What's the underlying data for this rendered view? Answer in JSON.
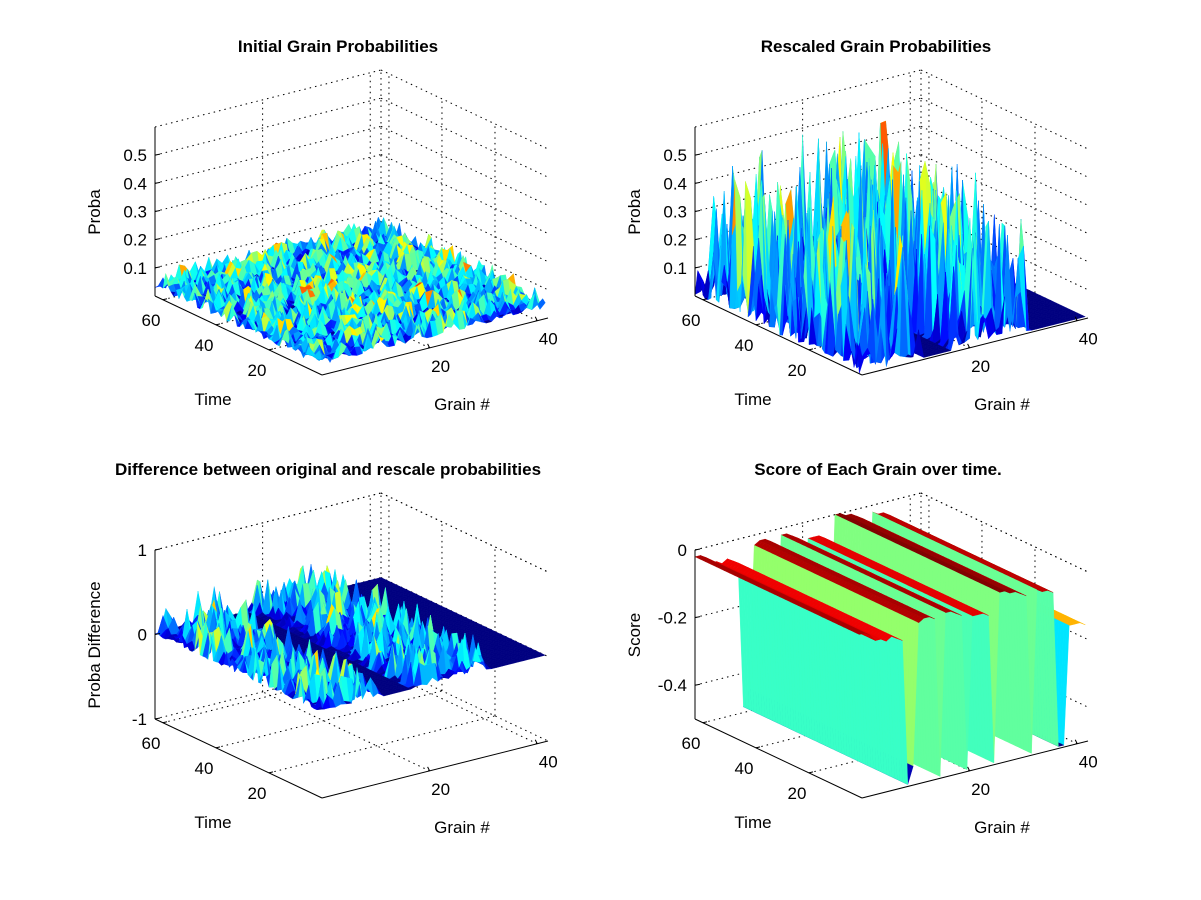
{
  "chart_data": [
    {
      "type": "surface3d",
      "title": "Initial Grain Probabilities",
      "xlabel": "Grain #",
      "ylabel": "Time",
      "zlabel": "Proba",
      "xlim": [
        0,
        42
      ],
      "ylim": [
        0,
        63
      ],
      "zlim": [
        0,
        0.6
      ],
      "xticks": [
        "20",
        "40"
      ],
      "yticks": [
        "20",
        "40",
        "60"
      ],
      "zticks": [
        "0.1",
        "0.2",
        "0.3",
        "0.4",
        "0.5"
      ],
      "grid": true,
      "surface": {
        "kind": "noise",
        "base": 0.03,
        "amplitude": 0.07,
        "active_grains": [
          [
            0,
            42
          ]
        ],
        "seed": 11
      }
    },
    {
      "type": "surface3d",
      "title": "Rescaled Grain Probabilities",
      "xlabel": "Grain #",
      "ylabel": "Time",
      "zlabel": "Proba",
      "xlim": [
        0,
        42
      ],
      "ylim": [
        0,
        63
      ],
      "zlim": [
        0,
        0.6
      ],
      "xticks": [
        "20",
        "40"
      ],
      "yticks": [
        "20",
        "40",
        "60"
      ],
      "zticks": [
        "0.1",
        "0.2",
        "0.3",
        "0.4",
        "0.5"
      ],
      "grid": true,
      "surface": {
        "kind": "spikes",
        "base": 0.0,
        "amplitude": 0.5,
        "active_grains": [
          [
            0,
            11
          ],
          [
            18,
            31
          ]
        ],
        "seed": 23
      }
    },
    {
      "type": "surface3d",
      "title": "Difference between original and rescale probabilities",
      "xlabel": "Grain #",
      "ylabel": "Time",
      "zlabel": "Proba Difference",
      "xlim": [
        0,
        42
      ],
      "ylim": [
        0,
        63
      ],
      "zlim": [
        -1,
        1
      ],
      "xticks": [
        "20",
        "40"
      ],
      "yticks": [
        "20",
        "40",
        "60"
      ],
      "zticks": [
        "-1",
        "0",
        "1"
      ],
      "grid": true,
      "surface": {
        "kind": "spikes",
        "base": 0.0,
        "amplitude": 0.4,
        "active_grains": [
          [
            0,
            11
          ],
          [
            18,
            31
          ]
        ],
        "seed": 37
      }
    },
    {
      "type": "surface3d",
      "title": "Score of Each Grain over time.",
      "xlabel": "Grain #",
      "ylabel": "Time",
      "zlabel": "Score",
      "xlim": [
        0,
        42
      ],
      "ylim": [
        0,
        63
      ],
      "zlim": [
        -0.5,
        0
      ],
      "xticks": [
        "20",
        "40"
      ],
      "yticks": [
        "20",
        "40",
        "60"
      ],
      "zticks": [
        "-0.4",
        "-0.2",
        "0"
      ],
      "grid": true,
      "surface": {
        "kind": "profile",
        "grain_scores": [
          -0.02,
          -0.02,
          -0.03,
          -0.05,
          -0.05,
          -0.06,
          -0.05,
          -0.06,
          -0.07,
          -0.5,
          -0.45,
          -0.03,
          -0.02,
          -0.02,
          -0.03,
          -0.5,
          -0.02,
          -0.02,
          -0.03,
          -0.04,
          -0.5,
          -0.05,
          -0.05,
          -0.05,
          -0.06,
          -0.5,
          0,
          0,
          -0.01,
          -0.01,
          -0.02,
          -0.03,
          -0.5,
          -0.02,
          -0.03,
          -0.03,
          -0.04,
          -0.5,
          -0.5,
          -0.15,
          -0.15,
          -0.15,
          -0.16
        ]
      }
    }
  ]
}
